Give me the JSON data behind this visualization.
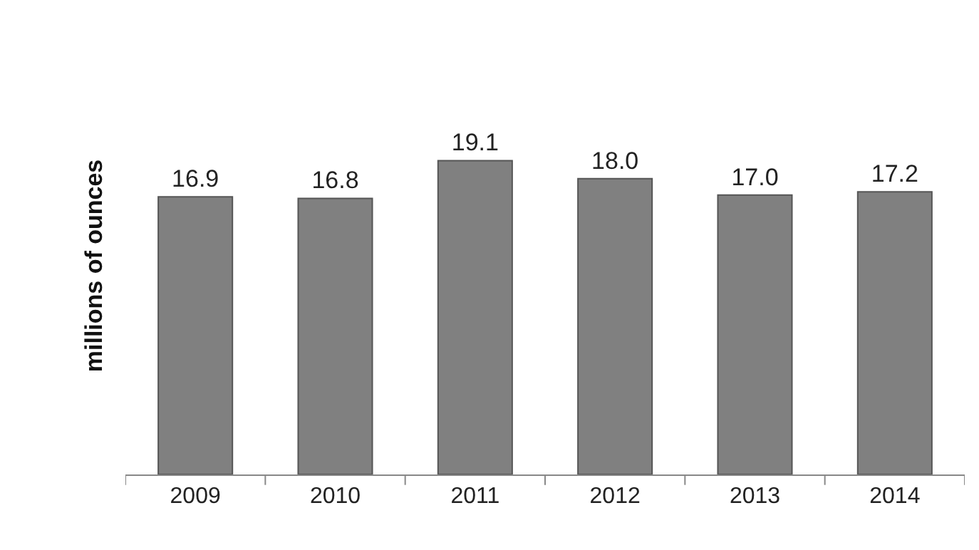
{
  "chart_data": {
    "type": "bar",
    "ylabel": "millions of ounces",
    "categories": [
      "2009",
      "2010",
      "2011",
      "2012",
      "2013",
      "2014"
    ],
    "values": [
      16.9,
      16.8,
      19.1,
      18.0,
      17.0,
      17.2
    ],
    "value_labels": [
      "16.9",
      "16.8",
      "19.1",
      "18.0",
      "17.0",
      "17.2"
    ],
    "color": "#808080",
    "grid": false,
    "legend": false
  }
}
